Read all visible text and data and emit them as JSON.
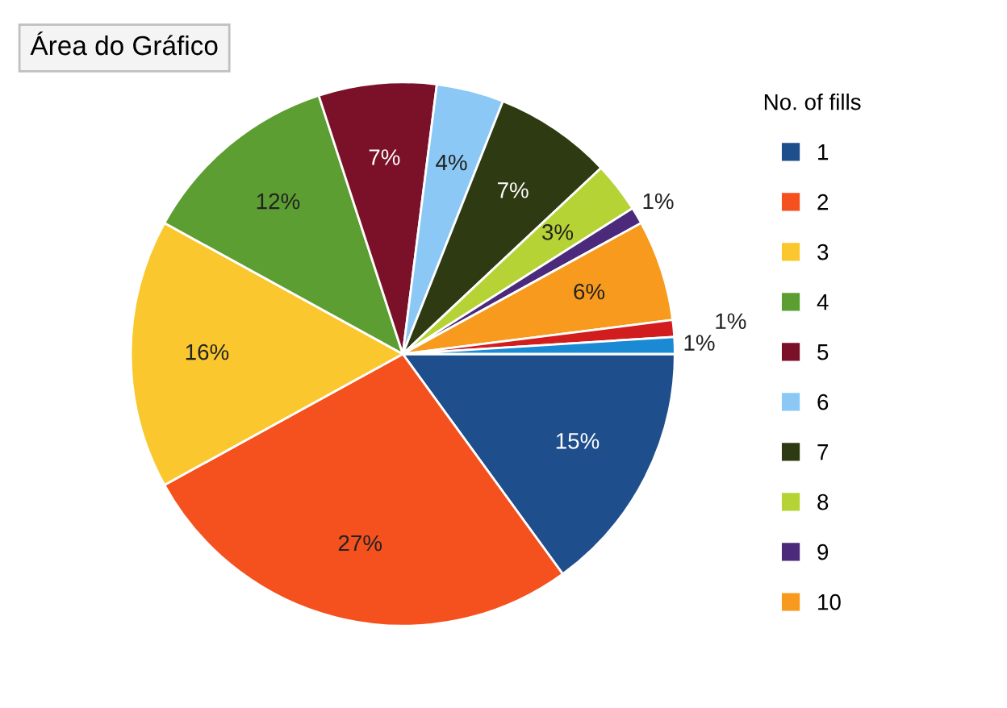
{
  "chart_data": {
    "type": "pie",
    "legend_title": "No. of fills",
    "legend": "right",
    "annotations": [
      "Área do Gráfico"
    ],
    "categories": [
      "1",
      "2",
      "3",
      "4",
      "5",
      "6",
      "7",
      "8",
      "9",
      "10",
      null,
      null
    ],
    "values": [
      15,
      27,
      16,
      12,
      7,
      4,
      7,
      3,
      1,
      6,
      1,
      1
    ],
    "colors": [
      "#1f4e8c",
      "#f4511e",
      "#fbc72e",
      "#5c9e31",
      "#7b1128",
      "#8cc8f5",
      "#2e3a12",
      "#b5d334",
      "#4b2a7b",
      "#f79a1d",
      "#d11d1d",
      "#1a8ad4"
    ],
    "value_labels": [
      "15%",
      "27%",
      "16%",
      "12%",
      "7%",
      "4%",
      "7%",
      "3%",
      "1%",
      "6%",
      "1%",
      "1%"
    ]
  }
}
